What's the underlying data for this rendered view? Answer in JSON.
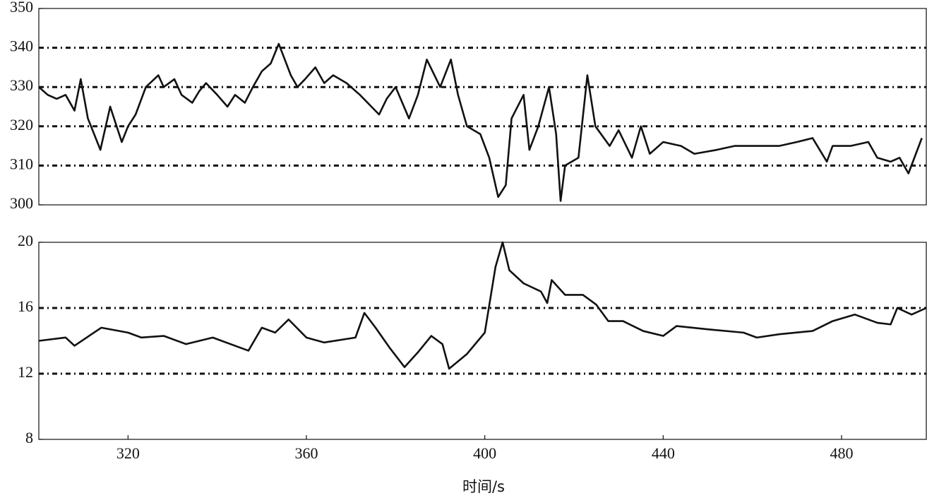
{
  "chart_data": [
    {
      "type": "line",
      "grid": true,
      "xlim": [
        300,
        499
      ],
      "ylim": [
        300,
        350
      ],
      "yticks": [
        300,
        310,
        320,
        330,
        340,
        350
      ],
      "series": [
        {
          "color": "#111111",
          "x": [
            300,
            302,
            304,
            306,
            308,
            309.4,
            311,
            313.8,
            316,
            318.6,
            320,
            321.7,
            324,
            326.8,
            328,
            330.4,
            332,
            334.4,
            336,
            337.5,
            340,
            342.3,
            344,
            346.2,
            348,
            350,
            352,
            353.8,
            356.5,
            358,
            359.7,
            362,
            364,
            366,
            369,
            372,
            376.3,
            378,
            380,
            383,
            385,
            387,
            390,
            392.4,
            394,
            396,
            399,
            401,
            403,
            404.7,
            406,
            408.7,
            410,
            412,
            414.4,
            416,
            417,
            418,
            421,
            423,
            424.8,
            428,
            430,
            433,
            435,
            437,
            440,
            444,
            447,
            452,
            456,
            460,
            466,
            470,
            473.5,
            476.7,
            478,
            482,
            486,
            488,
            491,
            493,
            495,
            498
          ],
          "values": [
            330,
            328,
            327,
            328,
            324,
            332,
            322,
            314,
            325,
            316,
            320,
            323,
            330,
            333,
            330,
            332,
            328,
            326,
            329,
            331,
            328,
            325,
            328,
            326,
            330,
            334,
            336,
            341,
            333,
            330,
            332,
            335,
            331,
            333,
            331,
            328,
            323,
            327,
            330,
            322,
            328,
            337,
            330,
            337,
            328,
            320,
            318,
            312,
            302,
            305,
            322,
            328,
            314,
            320,
            330,
            318,
            301,
            310,
            312,
            333,
            320,
            315,
            319,
            312,
            320,
            313,
            316,
            315,
            313,
            314,
            315,
            315,
            315,
            316,
            317,
            311,
            315,
            315,
            316,
            312,
            311,
            312,
            308,
            317
          ]
        }
      ]
    },
    {
      "type": "line",
      "grid": true,
      "xlabel": "时间/s",
      "xlim": [
        300,
        499
      ],
      "ylim": [
        8,
        20
      ],
      "yticks": [
        8,
        12,
        16,
        20
      ],
      "xticks": [
        320,
        360,
        400,
        440,
        480
      ],
      "series": [
        {
          "color": "#111111",
          "x": [
            300,
            306,
            308,
            314,
            320,
            323,
            328,
            333,
            339,
            345,
            347,
            350,
            353,
            356,
            360,
            364,
            371,
            373,
            375.5,
            378.6,
            382,
            385,
            388,
            390.5,
            392,
            396,
            400,
            402.4,
            404,
            405.5,
            408.7,
            412.6,
            414,
            415,
            418,
            422,
            425,
            427.7,
            431,
            435.5,
            440,
            443,
            450,
            458,
            461,
            466,
            473.5,
            478,
            483,
            488,
            491,
            492.5,
            495.7,
            499
          ],
          "values": [
            14,
            14.2,
            13.7,
            14.8,
            14.5,
            14.2,
            14.3,
            13.8,
            14.2,
            13.6,
            13.4,
            14.8,
            14.5,
            15.3,
            14.2,
            13.9,
            14.2,
            15.7,
            14.8,
            13.6,
            12.4,
            13.3,
            14.3,
            13.8,
            12.3,
            13.2,
            14.5,
            18.5,
            20,
            18.3,
            17.5,
            17,
            16.3,
            17.7,
            16.8,
            16.8,
            16.2,
            15.2,
            15.2,
            14.6,
            14.3,
            14.9,
            14.7,
            14.5,
            14.2,
            14.4,
            14.6,
            15.2,
            15.6,
            15.1,
            15,
            16,
            15.6,
            16
          ]
        }
      ]
    }
  ]
}
